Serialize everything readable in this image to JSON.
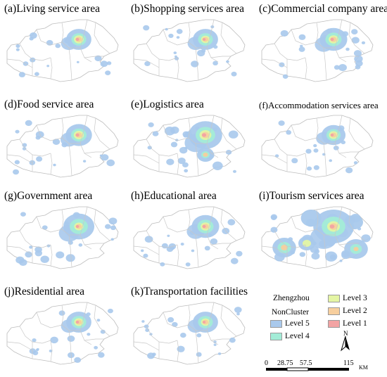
{
  "panels": [
    {
      "id": "a",
      "title": "(a)Living service area",
      "intensity": 0.55,
      "spread": 0.35
    },
    {
      "id": "b",
      "title": "(b)Shopping services area",
      "intensity": 0.45,
      "spread": 0.35
    },
    {
      "id": "c",
      "title": "(c)Commercial company area",
      "intensity": 0.55,
      "spread": 0.45
    },
    {
      "id": "d",
      "title": "(d)Food service area",
      "intensity": 0.6,
      "spread": 0.4
    },
    {
      "id": "e",
      "title": "(e)Logistics area",
      "intensity": 0.8,
      "spread": 0.7
    },
    {
      "id": "f",
      "title": "(f)Accommodation services area",
      "intensity": 0.5,
      "spread": 0.3
    },
    {
      "id": "g",
      "title": "(g)Government area",
      "intensity": 0.5,
      "spread": 0.6
    },
    {
      "id": "h",
      "title": "(h)Educational area",
      "intensity": 0.55,
      "spread": 0.45
    },
    {
      "id": "i",
      "title": "(i)Tourism services area",
      "intensity": 0.9,
      "spread": 1.0
    },
    {
      "id": "j",
      "title": "(j)Residential area",
      "intensity": 0.5,
      "spread": 0.35
    },
    {
      "id": "k",
      "title": "(k)Transportation facilities",
      "intensity": 0.45,
      "spread": 0.35
    }
  ],
  "legend": {
    "items": [
      {
        "label": "Zhengzhou",
        "color": "#ffffff"
      },
      {
        "label": "NonCluster",
        "color": "#ffffff"
      },
      {
        "label": "Level 5",
        "color": "#a9c9ec"
      },
      {
        "label": "Level 4",
        "color": "#a3ecd7"
      },
      {
        "label": "Level 3",
        "color": "#e4f5a4"
      },
      {
        "label": "Level 2",
        "color": "#f7cf9e"
      },
      {
        "label": "Level 1",
        "color": "#f2a3a3"
      }
    ]
  },
  "north_label": "N",
  "scale": {
    "ticks": [
      "0",
      "28.75",
      "57.5",
      "115"
    ],
    "unit": "KM"
  }
}
